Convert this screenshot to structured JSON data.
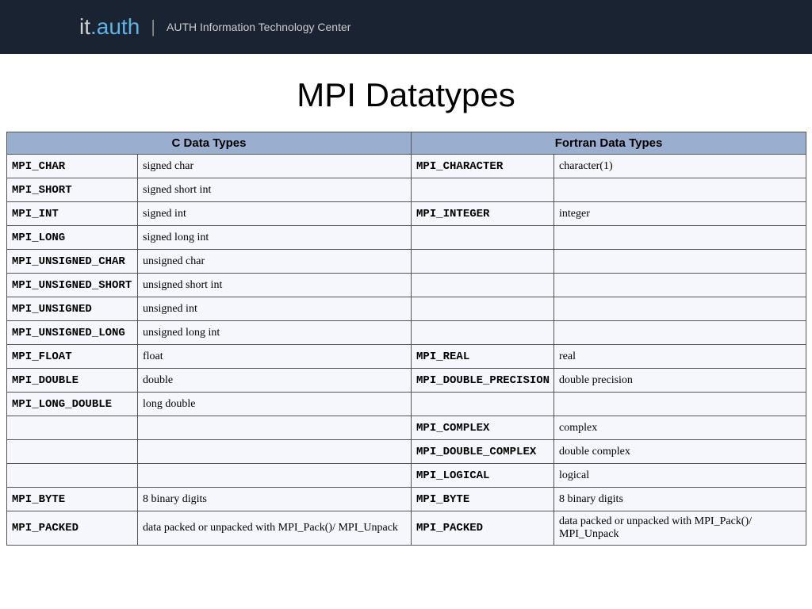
{
  "header": {
    "logo_it": "it",
    "logo_dot": ".",
    "logo_auth": "auth",
    "separator": "|",
    "subtitle": "AUTH Information Technology Center"
  },
  "title": "MPI Datatypes",
  "table": {
    "header_c": "C Data Types",
    "header_fortran": "Fortran Data Types",
    "rows": [
      {
        "c_mpi": "MPI_CHAR",
        "c_desc": "signed char",
        "f_mpi": "MPI_CHARACTER",
        "f_desc": "character(1)"
      },
      {
        "c_mpi": "MPI_SHORT",
        "c_desc": "signed short int",
        "f_mpi": "",
        "f_desc": ""
      },
      {
        "c_mpi": "MPI_INT",
        "c_desc": "signed int",
        "f_mpi": "MPI_INTEGER",
        "f_desc": "integer"
      },
      {
        "c_mpi": "MPI_LONG",
        "c_desc": "signed long int",
        "f_mpi": "",
        "f_desc": ""
      },
      {
        "c_mpi": "MPI_UNSIGNED_CHAR",
        "c_desc": "unsigned char",
        "f_mpi": "",
        "f_desc": ""
      },
      {
        "c_mpi": "MPI_UNSIGNED_SHORT",
        "c_desc": "unsigned short int",
        "f_mpi": "",
        "f_desc": ""
      },
      {
        "c_mpi": "MPI_UNSIGNED",
        "c_desc": "unsigned int",
        "f_mpi": "",
        "f_desc": ""
      },
      {
        "c_mpi": "MPI_UNSIGNED_LONG",
        "c_desc": "unsigned long int",
        "f_mpi": "",
        "f_desc": ""
      },
      {
        "c_mpi": "MPI_FLOAT",
        "c_desc": "float",
        "f_mpi": "MPI_REAL",
        "f_desc": "real"
      },
      {
        "c_mpi": "MPI_DOUBLE",
        "c_desc": "double",
        "f_mpi": "MPI_DOUBLE_PRECISION",
        "f_desc": "double precision"
      },
      {
        "c_mpi": "MPI_LONG_DOUBLE",
        "c_desc": "long double",
        "f_mpi": "",
        "f_desc": ""
      },
      {
        "c_mpi": "",
        "c_desc": "",
        "f_mpi": "MPI_COMPLEX",
        "f_desc": "complex"
      },
      {
        "c_mpi": "",
        "c_desc": "",
        "f_mpi": "MPI_DOUBLE_COMPLEX",
        "f_desc": "double complex"
      },
      {
        "c_mpi": "",
        "c_desc": "",
        "f_mpi": "MPI_LOGICAL",
        "f_desc": "logical"
      },
      {
        "c_mpi": "MPI_BYTE",
        "c_desc": "8 binary digits",
        "f_mpi": "MPI_BYTE",
        "f_desc": "8 binary digits"
      },
      {
        "c_mpi": "MPI_PACKED",
        "c_desc": "data packed or unpacked with MPI_Pack()/ MPI_Unpack",
        "f_mpi": "MPI_PACKED",
        "f_desc": "data packed or unpacked with MPI_Pack()/ MPI_Unpack"
      }
    ]
  }
}
